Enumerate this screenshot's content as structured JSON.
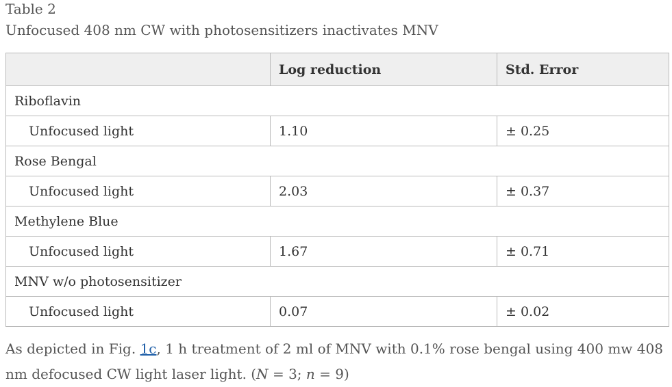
{
  "caption": {
    "label": "Table 2",
    "title": "Unfocused 408 nm CW with photosensitizers inactivates MNV"
  },
  "table": {
    "headers": [
      "",
      "Log reduction",
      "Std. Error"
    ],
    "groups": [
      {
        "name": "Riboflavin",
        "row": {
          "label": "Unfocused light",
          "log_reduction": "1.10",
          "std_error": "± 0.25"
        }
      },
      {
        "name": "Rose Bengal",
        "row": {
          "label": "Unfocused light",
          "log_reduction": "2.03",
          "std_error": "± 0.37"
        }
      },
      {
        "name": "Methylene Blue",
        "row": {
          "label": "Unfocused light",
          "log_reduction": "1.67",
          "std_error": "± 0.71"
        }
      },
      {
        "name": "MNV w/o photosensitizer",
        "row": {
          "label": "Unfocused light",
          "log_reduction": "0.07",
          "std_error": "± 0.02"
        }
      }
    ]
  },
  "footnote": {
    "pre_link": "As depicted in Fig. ",
    "link": "1c",
    "post_link": ", 1 h treatment of 2 ml of MNV with 0.1% rose bengal using 400 mw 408 nm defocused CW light laser light. (",
    "N_symbol": "N",
    "N_rest": " = 3; ",
    "n_symbol": "n",
    "n_rest": " = 9)"
  }
}
